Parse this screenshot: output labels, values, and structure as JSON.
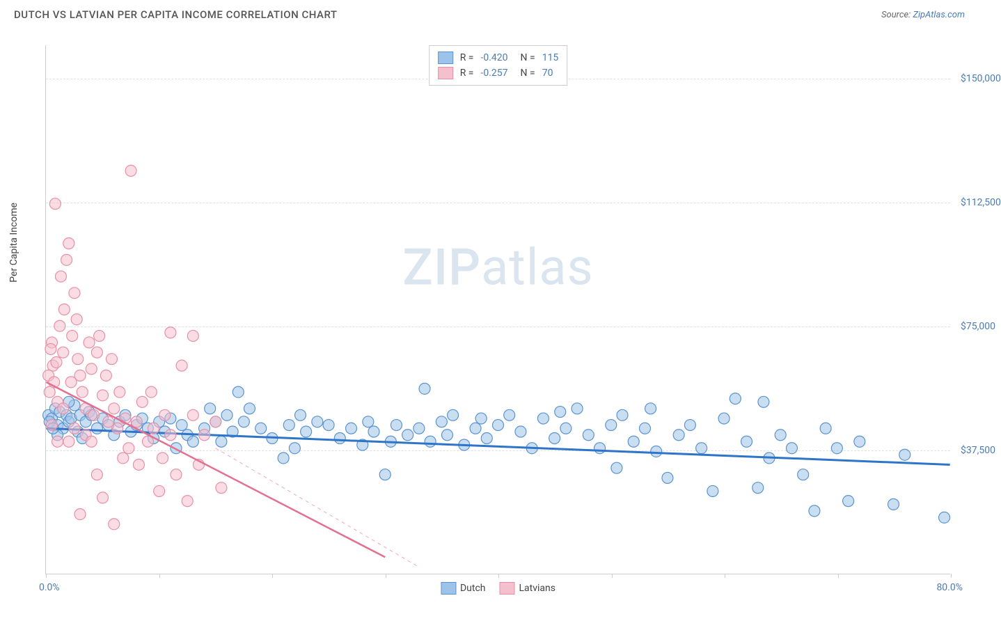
{
  "header": {
    "title": "DUTCH VS LATVIAN PER CAPITA INCOME CORRELATION CHART",
    "source_prefix": "Source: ",
    "source_link": "ZipAtlas.com"
  },
  "watermark": {
    "bold": "ZIP",
    "light": "atlas"
  },
  "chart": {
    "type": "scatter",
    "y_axis_label": "Per Capita Income",
    "background_color": "#ffffff",
    "grid_color": "#e0e0e0",
    "axis_color": "#cccccc",
    "xlim": [
      0,
      80
    ],
    "ylim": [
      0,
      160000
    ],
    "x_range_labels": {
      "min": "0.0%",
      "max": "80.0%"
    },
    "x_ticks": [
      0,
      10,
      20,
      30,
      40,
      50,
      60,
      70,
      80
    ],
    "y_ticks": [
      {
        "value": 37500,
        "label": "$37,500"
      },
      {
        "value": 75000,
        "label": "$75,000"
      },
      {
        "value": 112500,
        "label": "$112,500"
      },
      {
        "value": 150000,
        "label": "$150,000"
      }
    ],
    "tick_label_color": "#4a7bb5",
    "tick_label_fontsize": 14,
    "marker_radius": 8,
    "marker_opacity": 0.55,
    "series": [
      {
        "name": "Dutch",
        "fill_color": "#9ec3e8",
        "stroke_color": "#5a93d0",
        "line_color": "#2e75c9",
        "line_width": 3,
        "line_dash": "none",
        "R": "-0.420",
        "N": "115",
        "trend": {
          "x1": 0,
          "y1": 44000,
          "x2": 80,
          "y2": 33000
        },
        "points": [
          [
            0.2,
            48000
          ],
          [
            0.5,
            47000
          ],
          [
            0.8,
            50000
          ],
          [
            1.0,
            45000
          ],
          [
            1.2,
            49000
          ],
          [
            1.5,
            44000
          ],
          [
            1.8,
            48000
          ],
          [
            2.0,
            46000
          ],
          [
            2.2,
            47000
          ],
          [
            2.5,
            51000
          ],
          [
            2.8,
            43000
          ],
          [
            3.0,
            48000
          ],
          [
            3.2,
            41000
          ],
          [
            3.5,
            46000
          ],
          [
            3.8,
            49000
          ],
          [
            4.0,
            48000
          ],
          [
            4.5,
            44000
          ],
          [
            5.0,
            47000
          ],
          [
            5.5,
            45000
          ],
          [
            6.0,
            42000
          ],
          [
            6.5,
            46000
          ],
          [
            7.0,
            48000
          ],
          [
            7.5,
            43000
          ],
          [
            8.0,
            45000
          ],
          [
            8.5,
            47000
          ],
          [
            9.0,
            44000
          ],
          [
            9.5,
            41000
          ],
          [
            10.0,
            46000
          ],
          [
            10.5,
            43000
          ],
          [
            11.0,
            47000
          ],
          [
            11.5,
            38000
          ],
          [
            12.0,
            45000
          ],
          [
            12.5,
            42000
          ],
          [
            13.0,
            40000
          ],
          [
            14.0,
            44000
          ],
          [
            15.0,
            46000
          ],
          [
            15.5,
            40000
          ],
          [
            16.0,
            48000
          ],
          [
            16.5,
            43000
          ],
          [
            17.0,
            55000
          ],
          [
            17.5,
            46000
          ],
          [
            18.0,
            50000
          ],
          [
            19.0,
            44000
          ],
          [
            20.0,
            41000
          ],
          [
            21.0,
            35000
          ],
          [
            21.5,
            45000
          ],
          [
            22.0,
            38000
          ],
          [
            22.5,
            48000
          ],
          [
            23.0,
            43000
          ],
          [
            24.0,
            46000
          ],
          [
            25.0,
            45000
          ],
          [
            26.0,
            41000
          ],
          [
            27.0,
            44000
          ],
          [
            28.0,
            39000
          ],
          [
            28.5,
            46000
          ],
          [
            29.0,
            43000
          ],
          [
            30.0,
            30000
          ],
          [
            30.5,
            40000
          ],
          [
            31.0,
            45000
          ],
          [
            32.0,
            42000
          ],
          [
            33.0,
            44000
          ],
          [
            33.5,
            56000
          ],
          [
            34.0,
            40000
          ],
          [
            35.0,
            46000
          ],
          [
            35.5,
            42000
          ],
          [
            36.0,
            48000
          ],
          [
            37.0,
            39000
          ],
          [
            38.0,
            44000
          ],
          [
            38.5,
            47000
          ],
          [
            39.0,
            41000
          ],
          [
            40.0,
            45000
          ],
          [
            41.0,
            48000
          ],
          [
            42.0,
            43000
          ],
          [
            43.0,
            38000
          ],
          [
            44.0,
            47000
          ],
          [
            45.0,
            41000
          ],
          [
            45.5,
            49000
          ],
          [
            46.0,
            44000
          ],
          [
            47.0,
            50000
          ],
          [
            48.0,
            42000
          ],
          [
            49.0,
            38000
          ],
          [
            50.0,
            45000
          ],
          [
            50.5,
            32000
          ],
          [
            51.0,
            48000
          ],
          [
            52.0,
            40000
          ],
          [
            53.0,
            44000
          ],
          [
            53.5,
            50000
          ],
          [
            54.0,
            37000
          ],
          [
            55.0,
            29000
          ],
          [
            56.0,
            42000
          ],
          [
            57.0,
            45000
          ],
          [
            58.0,
            38000
          ],
          [
            59.0,
            25000
          ],
          [
            60.0,
            47000
          ],
          [
            61.0,
            53000
          ],
          [
            62.0,
            40000
          ],
          [
            63.0,
            26000
          ],
          [
            63.5,
            52000
          ],
          [
            64.0,
            35000
          ],
          [
            65.0,
            42000
          ],
          [
            66.0,
            38000
          ],
          [
            67.0,
            30000
          ],
          [
            68.0,
            19000
          ],
          [
            69.0,
            44000
          ],
          [
            70.0,
            38000
          ],
          [
            71.0,
            22000
          ],
          [
            72.0,
            40000
          ],
          [
            75.0,
            21000
          ],
          [
            76.0,
            36000
          ],
          [
            79.5,
            17000
          ],
          [
            1.0,
            42000
          ],
          [
            2.0,
            52000
          ],
          [
            0.3,
            46000
          ],
          [
            0.6,
            44000
          ],
          [
            14.5,
            50000
          ]
        ]
      },
      {
        "name": "Latvians",
        "fill_color": "#f5c0cd",
        "stroke_color": "#e88fa5",
        "line_color": "#e56f8f",
        "line_width": 2.5,
        "line_dash": "solid_then_dashed",
        "R": "-0.257",
        "N": "70",
        "trend": {
          "x1": 0,
          "y1": 58000,
          "x2": 30,
          "y2": 5000
        },
        "dashed_extension": {
          "x1": 15,
          "y1": 38000,
          "x2": 33,
          "y2": 2000
        },
        "points": [
          [
            0.3,
            55000
          ],
          [
            0.5,
            70000
          ],
          [
            0.6,
            63000
          ],
          [
            0.8,
            112000
          ],
          [
            1.0,
            52000
          ],
          [
            1.2,
            75000
          ],
          [
            1.3,
            90000
          ],
          [
            1.5,
            67000
          ],
          [
            1.6,
            80000
          ],
          [
            1.8,
            95000
          ],
          [
            2.0,
            100000
          ],
          [
            2.2,
            58000
          ],
          [
            2.3,
            72000
          ],
          [
            2.5,
            85000
          ],
          [
            2.7,
            77000
          ],
          [
            2.8,
            65000
          ],
          [
            3.0,
            60000
          ],
          [
            3.2,
            55000
          ],
          [
            3.5,
            50000
          ],
          [
            3.8,
            70000
          ],
          [
            4.0,
            62000
          ],
          [
            4.2,
            48000
          ],
          [
            4.5,
            67000
          ],
          [
            4.7,
            72000
          ],
          [
            5.0,
            54000
          ],
          [
            5.3,
            60000
          ],
          [
            5.5,
            46000
          ],
          [
            5.8,
            65000
          ],
          [
            6.0,
            50000
          ],
          [
            6.3,
            44000
          ],
          [
            6.5,
            55000
          ],
          [
            6.8,
            35000
          ],
          [
            7.0,
            47000
          ],
          [
            7.3,
            38000
          ],
          [
            7.5,
            122000
          ],
          [
            8.0,
            46000
          ],
          [
            8.2,
            33000
          ],
          [
            8.5,
            52000
          ],
          [
            9.0,
            40000
          ],
          [
            9.3,
            55000
          ],
          [
            9.5,
            44000
          ],
          [
            10.0,
            25000
          ],
          [
            10.3,
            35000
          ],
          [
            10.5,
            48000
          ],
          [
            11.0,
            73000
          ],
          [
            11.0,
            42000
          ],
          [
            11.5,
            30000
          ],
          [
            12.0,
            63000
          ],
          [
            12.5,
            22000
          ],
          [
            13.0,
            48000
          ],
          [
            13.0,
            72000
          ],
          [
            13.5,
            33000
          ],
          [
            14.0,
            42000
          ],
          [
            15.0,
            46000
          ],
          [
            15.5,
            26000
          ],
          [
            3.0,
            18000
          ],
          [
            4.5,
            30000
          ],
          [
            5.0,
            23000
          ],
          [
            6.0,
            15000
          ],
          [
            2.0,
            40000
          ],
          [
            0.5,
            45000
          ],
          [
            1.0,
            40000
          ],
          [
            1.5,
            50000
          ],
          [
            2.5,
            44000
          ],
          [
            3.5,
            42000
          ],
          [
            4.0,
            40000
          ],
          [
            0.2,
            60000
          ],
          [
            0.4,
            68000
          ],
          [
            0.7,
            58000
          ],
          [
            0.9,
            64000
          ]
        ]
      }
    ]
  }
}
